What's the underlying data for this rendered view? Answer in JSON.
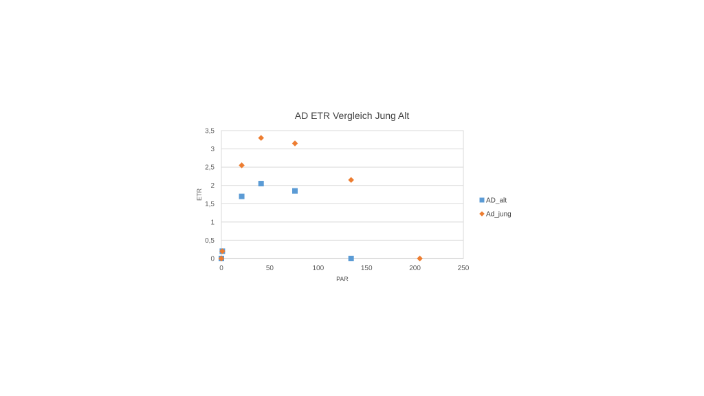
{
  "chart_data": {
    "type": "scatter",
    "title": "AD ETR Vergleich Jung Alt",
    "xlabel": "PAR",
    "ylabel": "ETR",
    "xlim": [
      0,
      250
    ],
    "ylim": [
      0,
      3.5
    ],
    "x_ticks": [
      "0",
      "50",
      "100",
      "150",
      "200",
      "250"
    ],
    "y_ticks": [
      "0",
      "0,5",
      "1",
      "1,5",
      "2",
      "2,5",
      "3",
      "3,5"
    ],
    "grid": "horizontal",
    "legend_position": "right",
    "series": [
      {
        "name": "AD_alt",
        "marker": "square",
        "color": "#5b9bd5",
        "points": [
          {
            "x": 0,
            "y": 0
          },
          {
            "x": 1,
            "y": 0.2
          },
          {
            "x": 21,
            "y": 1.7
          },
          {
            "x": 41,
            "y": 2.05
          },
          {
            "x": 76,
            "y": 1.85
          },
          {
            "x": 134,
            "y": 0
          }
        ]
      },
      {
        "name": "Ad_jung",
        "marker": "diamond",
        "color": "#ed7d31",
        "points": [
          {
            "x": 0,
            "y": 0
          },
          {
            "x": 1,
            "y": 0.2
          },
          {
            "x": 21,
            "y": 2.55
          },
          {
            "x": 41,
            "y": 3.3
          },
          {
            "x": 76,
            "y": 3.15
          },
          {
            "x": 134,
            "y": 2.15
          },
          {
            "x": 205,
            "y": 0
          }
        ]
      }
    ]
  }
}
